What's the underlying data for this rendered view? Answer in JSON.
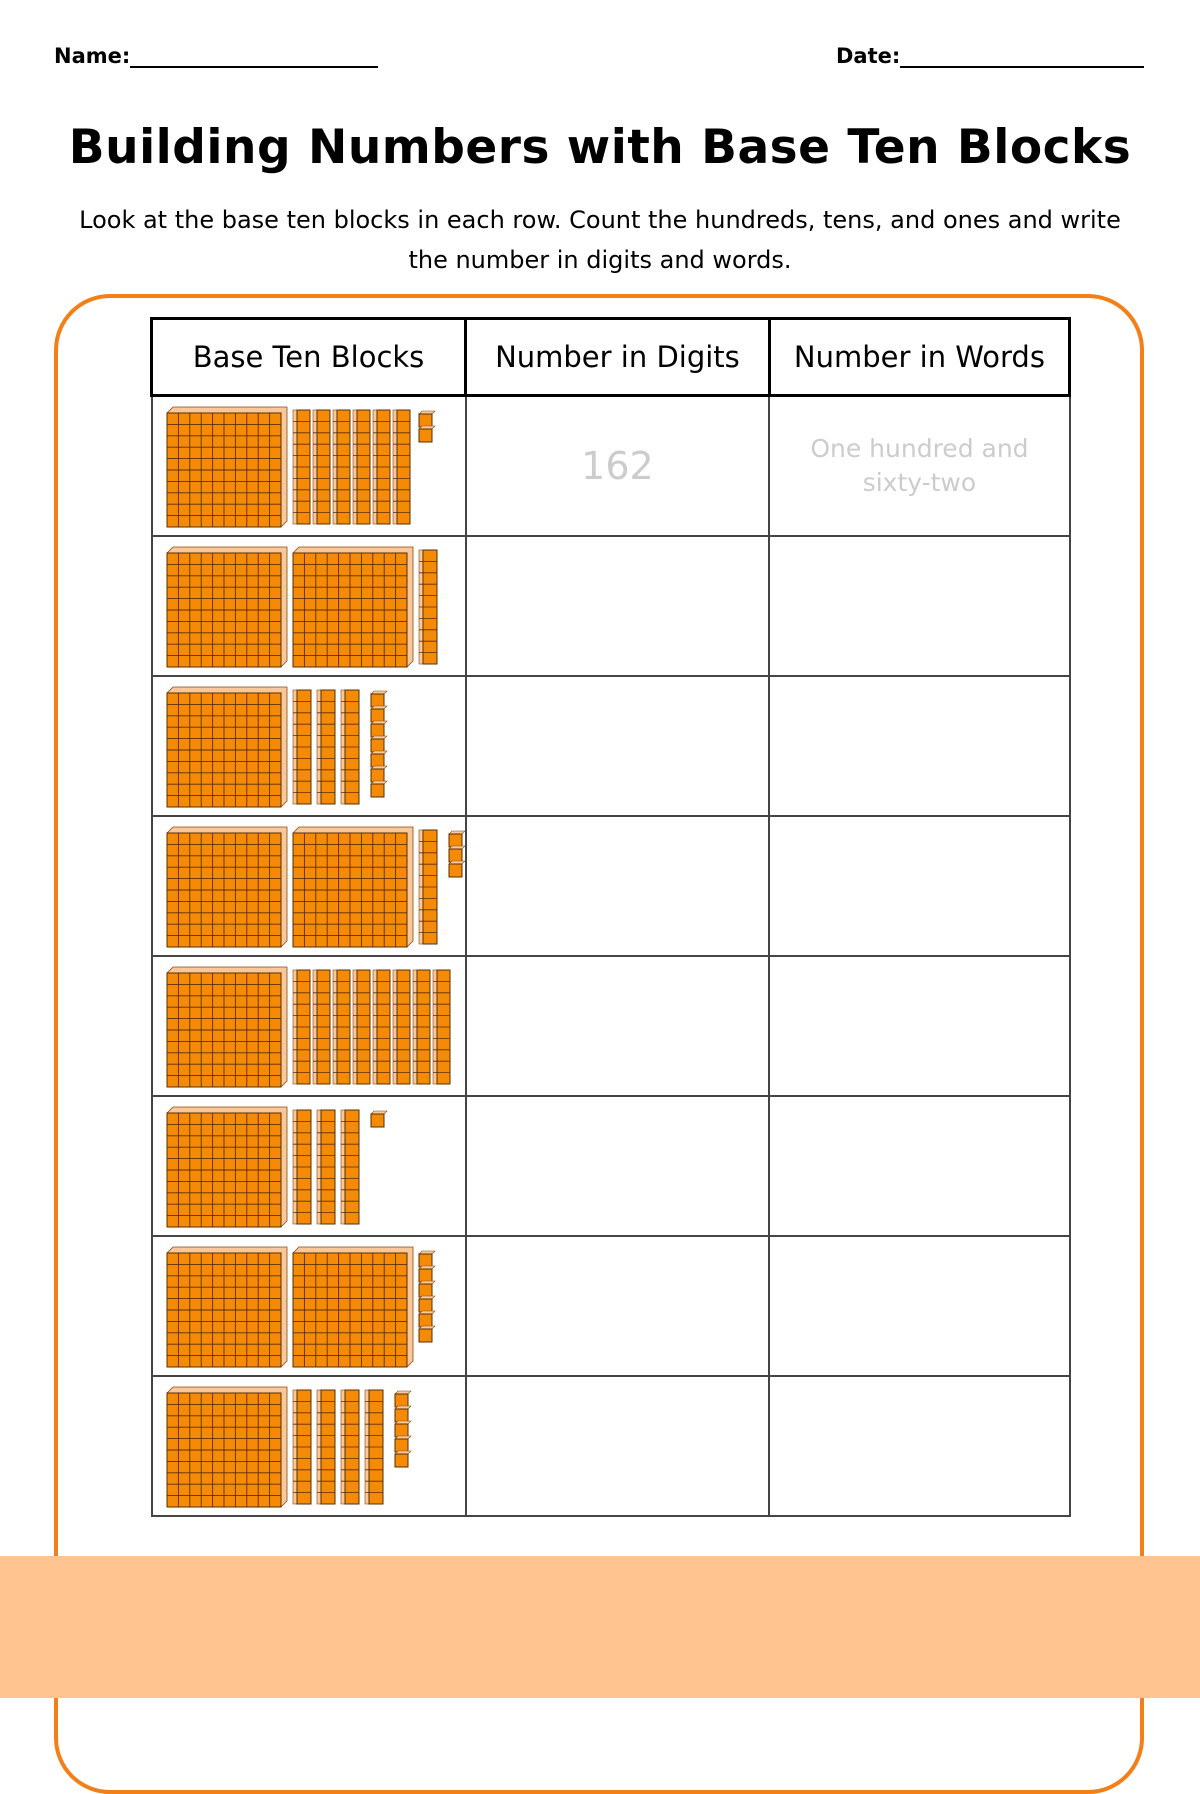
{
  "header": {
    "name_label": "Name:",
    "date_label": "Date:"
  },
  "title": "Building Numbers with Base Ten Blocks",
  "instructions": "Look at the base ten blocks in each row. Count the hundreds, tens, and ones and write the number in digits and words.",
  "table": {
    "headers": [
      "Base Ten Blocks",
      "Number in Digits",
      "Number in Words"
    ],
    "rows": [
      {
        "hundreds": 1,
        "tens": 6,
        "ones": 2,
        "digits": "162",
        "words": "One hundred and sixty-two"
      },
      {
        "hundreds": 2,
        "tens": 1,
        "ones": 0,
        "digits": "",
        "words": ""
      },
      {
        "hundreds": 1,
        "tens": 3,
        "ones": 7,
        "digits": "",
        "words": ""
      },
      {
        "hundreds": 2,
        "tens": 1,
        "ones": 3,
        "digits": "",
        "words": ""
      },
      {
        "hundreds": 1,
        "tens": 8,
        "ones": 0,
        "digits": "",
        "words": ""
      },
      {
        "hundreds": 1,
        "tens": 3,
        "ones": 1,
        "digits": "",
        "words": ""
      },
      {
        "hundreds": 2,
        "tens": 0,
        "ones": 6,
        "digits": "",
        "words": ""
      },
      {
        "hundreds": 1,
        "tens": 4,
        "ones": 5,
        "digits": "",
        "words": ""
      }
    ]
  },
  "colors": {
    "block_orange": "#f58a07",
    "block_side": "#f8c79a",
    "frame_orange": "#f57f17",
    "footer_band": "#ffc48f",
    "example_text": "#cccccc"
  }
}
